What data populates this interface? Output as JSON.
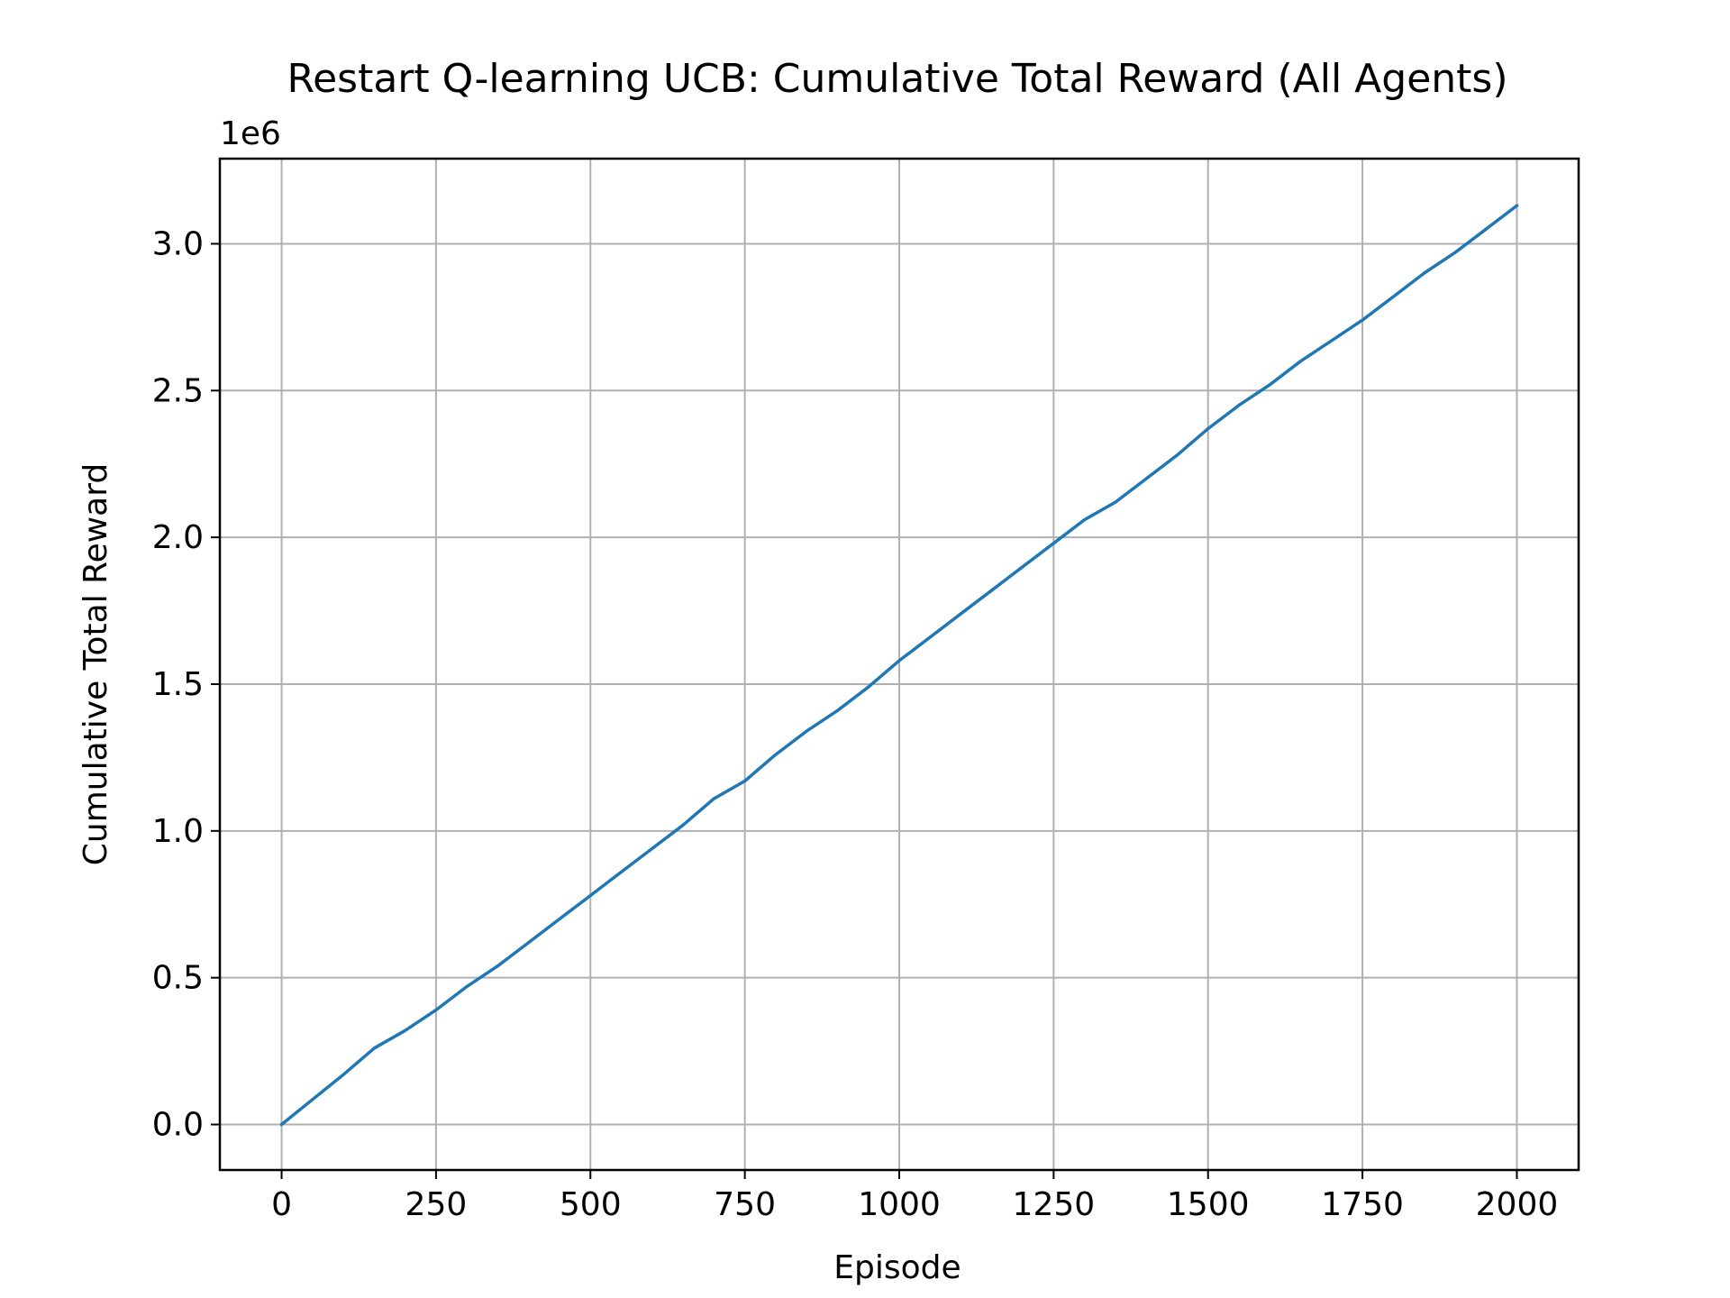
{
  "chart_data": {
    "type": "line",
    "title": "Restart Q-learning UCB: Cumulative Total Reward (All Agents)",
    "xlabel": "Episode",
    "ylabel": "Cumulative Total Reward",
    "y_offset_label": "1e6",
    "y_scale_factor": 1000000,
    "xlim": [
      -100,
      2100
    ],
    "ylim": [
      -155000,
      3290000
    ],
    "x_ticks": [
      0,
      250,
      500,
      750,
      1000,
      1250,
      1500,
      1750,
      2000
    ],
    "x_tick_labels": [
      "0",
      "250",
      "500",
      "750",
      "1000",
      "1250",
      "1500",
      "1750",
      "2000"
    ],
    "y_ticks": [
      0,
      500000,
      1000000,
      1500000,
      2000000,
      2500000,
      3000000
    ],
    "y_tick_labels": [
      "0.0",
      "0.5",
      "1.0",
      "1.5",
      "2.0",
      "2.5",
      "3.0"
    ],
    "grid": true,
    "legend": "none",
    "line_color": "#1f77b4",
    "series": [
      {
        "x": [
          0,
          50,
          100,
          150,
          200,
          250,
          300,
          350,
          400,
          450,
          500,
          550,
          600,
          650,
          700,
          750,
          800,
          850,
          900,
          950,
          1000,
          1050,
          1100,
          1150,
          1200,
          1250,
          1300,
          1350,
          1400,
          1450,
          1500,
          1550,
          1600,
          1650,
          1700,
          1750,
          1800,
          1850,
          1900,
          1950,
          2000
        ],
        "values": [
          0,
          85000,
          170000,
          260000,
          320000,
          390000,
          470000,
          540000,
          620000,
          700000,
          780000,
          860000,
          940000,
          1020000,
          1110000,
          1170000,
          1260000,
          1340000,
          1410000,
          1490000,
          1580000,
          1660000,
          1740000,
          1820000,
          1900000,
          1980000,
          2060000,
          2120000,
          2200000,
          2280000,
          2370000,
          2450000,
          2520000,
          2600000,
          2670000,
          2740000,
          2820000,
          2900000,
          2970000,
          3050000,
          3130000
        ]
      }
    ]
  }
}
